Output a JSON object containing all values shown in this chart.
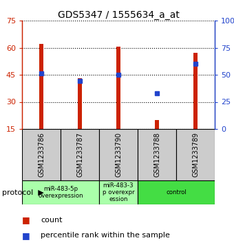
{
  "title": "GDS5347 / 1555634_a_at",
  "samples": [
    "GSM1233786",
    "GSM1233787",
    "GSM1233790",
    "GSM1233788",
    "GSM1233789"
  ],
  "bar_values": [
    62,
    43,
    60.5,
    20,
    57
  ],
  "bar_base": 15,
  "blue_values": [
    51,
    44,
    50,
    33,
    60
  ],
  "left_yticks": [
    15,
    30,
    45,
    60,
    75
  ],
  "right_yticks": [
    0,
    25,
    50,
    75,
    100
  ],
  "right_yticklabels": [
    "0",
    "25",
    "50",
    "75",
    "100%"
  ],
  "ylim": [
    15,
    75
  ],
  "right_ylim": [
    0,
    100
  ],
  "bar_color": "#cc2200",
  "blue_color": "#2244cc",
  "protocol_labels": [
    "miR-483-5p\noverexpression",
    "miR-483-3\np overexpr\nession",
    "control"
  ],
  "protocol_colors": [
    "#aaffaa",
    "#aaffaa",
    "#44dd44"
  ],
  "sample_bg": "#cccccc",
  "fig_width": 3.4,
  "fig_height": 3.63,
  "bar_width": 0.12
}
